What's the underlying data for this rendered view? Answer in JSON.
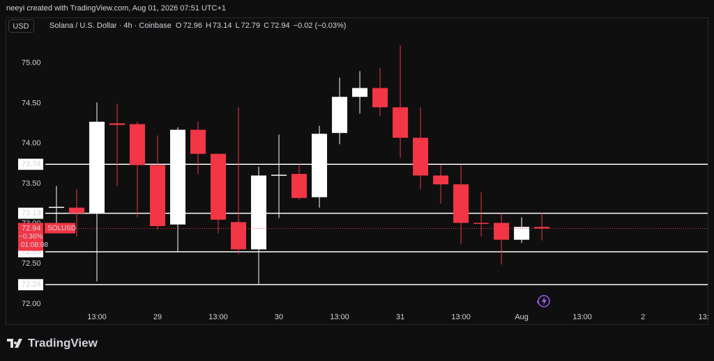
{
  "attribution": "neeyi created with TradingView.com, Aug 01, 2026 07:51 UTC+1",
  "currency": "USD",
  "brand": "TradingView",
  "chart_data": {
    "type": "candlestick",
    "title": "Solana / U.S. Dollar · 4h · Coinbase",
    "ohlc_letters": [
      "O",
      "H",
      "L",
      "C"
    ],
    "change": "−0.02 (−0.03%)",
    "series": [
      {
        "name": "SOLUSD",
        "up_color": "#ffffff",
        "down_color": "#f23645",
        "open": [
          73.2,
          73.2,
          73.13,
          74.25,
          74.24,
          73.73,
          72.99,
          74.17,
          73.87,
          73.02,
          72.68,
          73.6,
          73.62,
          73.33,
          74.13,
          74.58,
          74.69,
          74.45,
          74.07,
          73.6,
          73.49,
          73.01,
          73.01,
          72.8,
          72.96
        ],
        "high": [
          73.47,
          73.43,
          74.51,
          74.49,
          74.27,
          74.1,
          74.2,
          74.27,
          73.87,
          74.45,
          73.71,
          74.11,
          73.74,
          74.22,
          74.82,
          74.9,
          74.94,
          75.22,
          74.45,
          73.73,
          73.73,
          73.39,
          73.13,
          73.08,
          73.14
        ],
        "low": [
          72.93,
          72.84,
          72.28,
          73.47,
          73.08,
          72.93,
          72.65,
          73.62,
          72.88,
          72.62,
          72.25,
          73.07,
          73.3,
          73.2,
          73.99,
          74.37,
          74.34,
          73.82,
          73.43,
          73.25,
          72.74,
          72.84,
          72.49,
          72.76,
          72.79
        ],
        "close": [
          73.21,
          73.13,
          74.27,
          74.23,
          73.73,
          72.97,
          74.17,
          73.87,
          73.05,
          72.68,
          73.6,
          73.61,
          73.32,
          74.12,
          74.58,
          74.69,
          74.45,
          74.07,
          73.6,
          73.49,
          73.01,
          73.0,
          72.8,
          72.96,
          72.94
        ]
      }
    ],
    "xlim": [
      -0.55,
      32.2
    ],
    "xticks": [
      {
        "value": 2,
        "label": "13:00"
      },
      {
        "value": 5,
        "label": "29"
      },
      {
        "value": 8,
        "label": "13:00"
      },
      {
        "value": 11,
        "label": "30"
      },
      {
        "value": 14,
        "label": "13:00"
      },
      {
        "value": 17,
        "label": "31"
      },
      {
        "value": 20,
        "label": "13:00"
      },
      {
        "value": 23,
        "label": "Aug"
      },
      {
        "value": 26,
        "label": "13:00"
      },
      {
        "value": 29,
        "label": "2"
      },
      {
        "value": 32,
        "label": "13:"
      }
    ],
    "ylim": [
      71.74,
      75.57
    ],
    "yticks": [
      {
        "value": 72,
        "label": "72.00"
      },
      {
        "value": 72.5,
        "label": "72.50"
      },
      {
        "value": 73,
        "label": "73.00"
      },
      {
        "value": 73.5,
        "label": "73.50"
      },
      {
        "value": 74,
        "label": "74.00"
      },
      {
        "value": 74.5,
        "label": "74.50"
      },
      {
        "value": 75,
        "label": "75.00"
      }
    ],
    "price_lines": [
      73.74,
      73.13,
      72.65,
      72.24
    ],
    "last_price": {
      "value": 72.94,
      "change_label": "−0.36%",
      "countdown": "01:08:08",
      "symbol": "SOLUSD"
    }
  }
}
